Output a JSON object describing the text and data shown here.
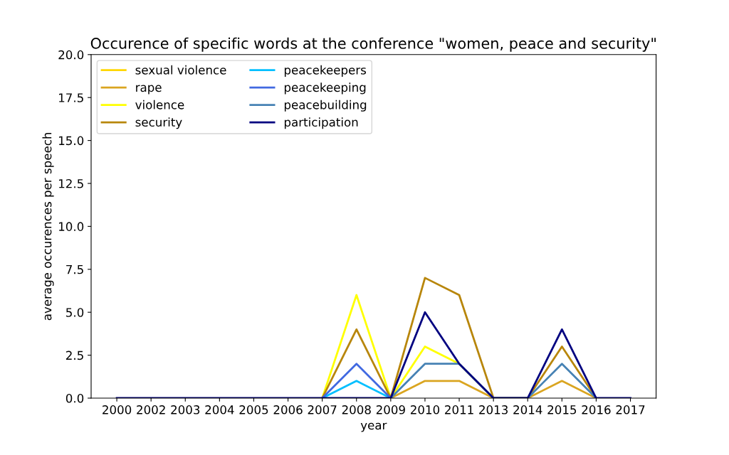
{
  "chart_data": {
    "type": "line",
    "title": "Occurence of specific words at the conference \"women, peace and security\"",
    "xlabel": "year",
    "ylabel": "average occurences per speech",
    "categories": [
      "2000",
      "2002",
      "2003",
      "2004",
      "2005",
      "2006",
      "2007",
      "2008",
      "2009",
      "2010",
      "2011",
      "2013",
      "2014",
      "2015",
      "2016",
      "2017"
    ],
    "series": [
      {
        "name": "sexual violence",
        "color": "#ffd700",
        "values": [
          null,
          null,
          null,
          null,
          null,
          null,
          null,
          null,
          null,
          null,
          null,
          null,
          null,
          null,
          null,
          null
        ]
      },
      {
        "name": "rape",
        "color": "#daa520",
        "values": [
          null,
          null,
          null,
          null,
          null,
          null,
          null,
          null,
          0,
          1,
          1,
          0,
          0,
          1,
          0,
          null
        ]
      },
      {
        "name": "violence",
        "color": "#ffff00",
        "values": [
          null,
          null,
          null,
          null,
          null,
          null,
          0,
          6,
          0,
          3,
          2,
          0,
          null,
          null,
          null,
          null
        ]
      },
      {
        "name": "security",
        "color": "#b8860b",
        "values": [
          null,
          null,
          null,
          null,
          null,
          null,
          0,
          4,
          0,
          7,
          6,
          0,
          0,
          3,
          0,
          null
        ]
      },
      {
        "name": "peacekeepers",
        "color": "#00bfff",
        "values": [
          null,
          null,
          null,
          null,
          null,
          null,
          0,
          1,
          0,
          null,
          null,
          null,
          null,
          null,
          null,
          null
        ]
      },
      {
        "name": "peacekeeping",
        "color": "#4169e1",
        "values": [
          null,
          null,
          null,
          null,
          null,
          null,
          0,
          2,
          0,
          null,
          null,
          null,
          null,
          null,
          null,
          null
        ]
      },
      {
        "name": "peacebuilding",
        "color": "#4682b4",
        "values": [
          null,
          null,
          null,
          null,
          null,
          null,
          null,
          null,
          0,
          2,
          2,
          0,
          0,
          2,
          0,
          null
        ]
      },
      {
        "name": "participation",
        "color": "#000080",
        "values": [
          0,
          0,
          0,
          0,
          0,
          0,
          0,
          0,
          0,
          5,
          2,
          0,
          0,
          4,
          0,
          0
        ]
      }
    ],
    "ylim": [
      0,
      20
    ],
    "yticks": [
      {
        "value": 0,
        "label": "0.0"
      },
      {
        "value": 2.5,
        "label": "2.5"
      },
      {
        "value": 5,
        "label": "5.0"
      },
      {
        "value": 7.5,
        "label": "7.5"
      },
      {
        "value": 10,
        "label": "10.0"
      },
      {
        "value": 12.5,
        "label": "12.5"
      },
      {
        "value": 15,
        "label": "15.0"
      },
      {
        "value": 17.5,
        "label": "17.5"
      },
      {
        "value": 20,
        "label": "20.0"
      }
    ],
    "grid": false,
    "legend": "top left",
    "marker": "none",
    "line_style": "solid"
  }
}
